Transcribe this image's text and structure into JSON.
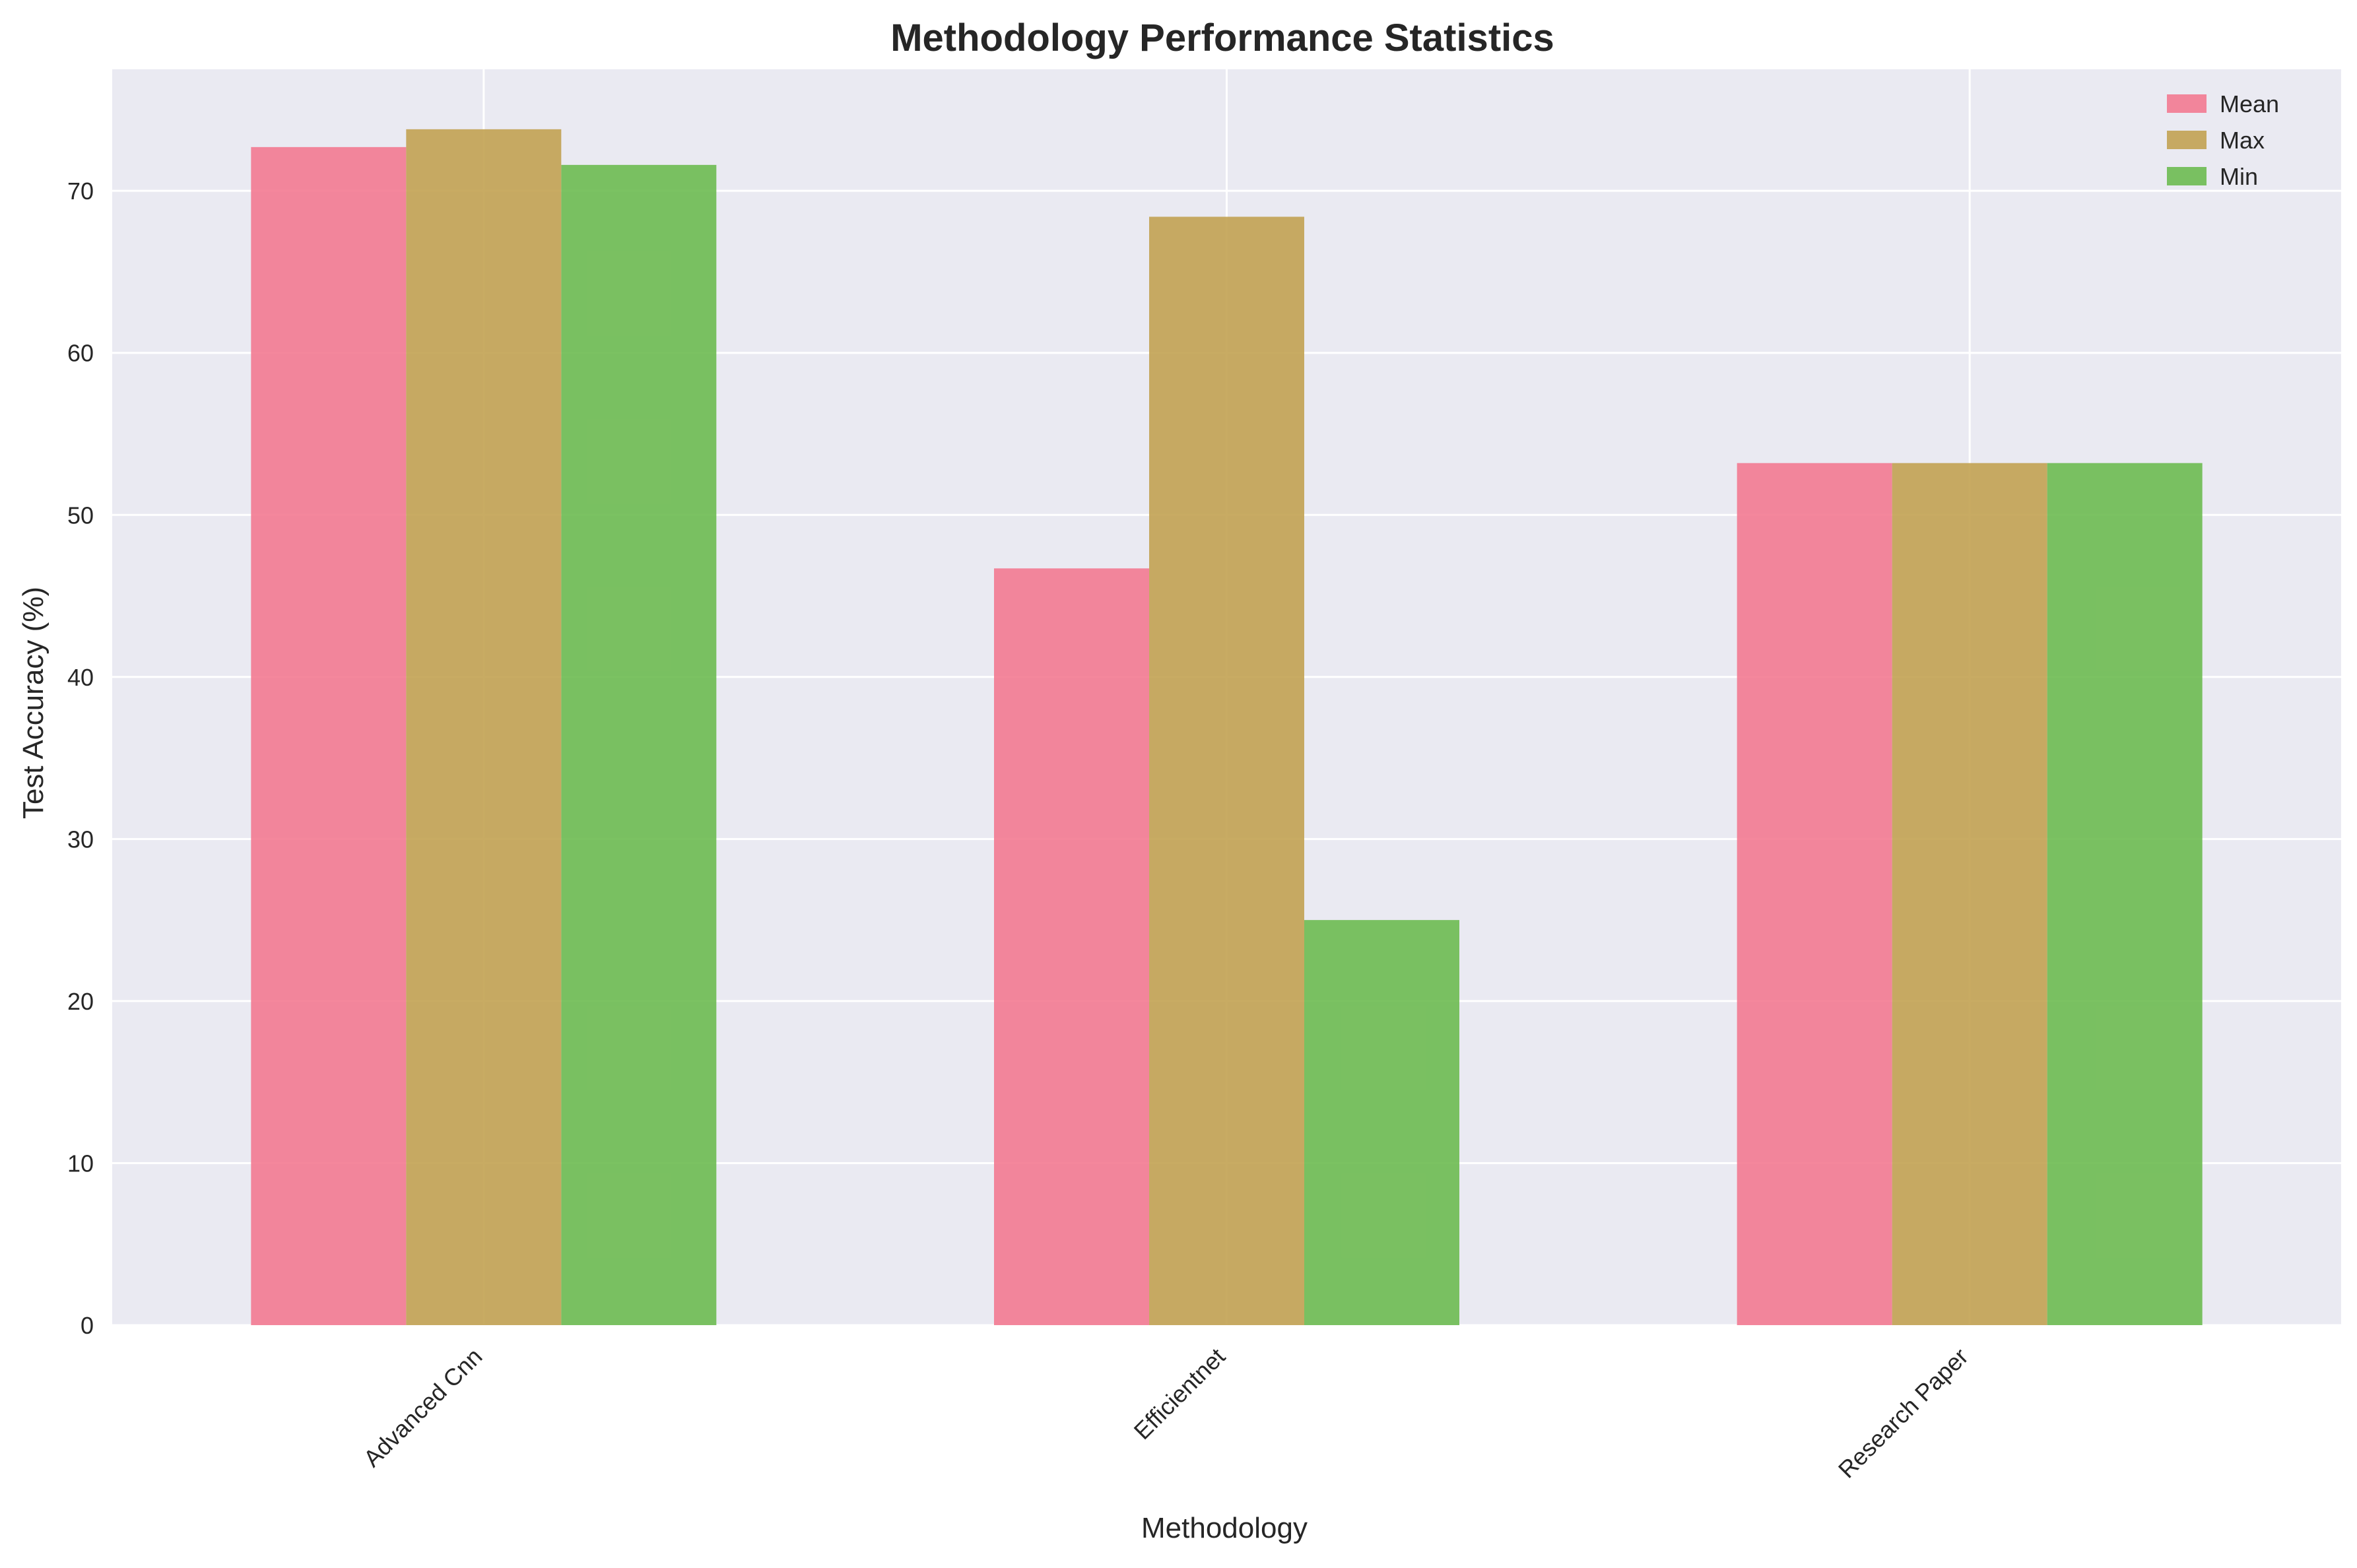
{
  "chart_data": {
    "type": "bar",
    "title": "Methodology Performance Statistics",
    "xlabel": "Methodology",
    "ylabel": "Test Accuracy (%)",
    "categories": [
      "Advanced Cnn",
      "Efficientnet",
      "Research Paper"
    ],
    "series": [
      {
        "name": "Mean",
        "values": [
          72.7,
          46.7,
          53.2
        ],
        "color": "#F37A91"
      },
      {
        "name": "Max",
        "values": [
          73.8,
          68.4,
          53.2
        ],
        "color": "#C2A252"
      },
      {
        "name": "Min",
        "values": [
          71.6,
          25.0,
          53.2
        ],
        "color": "#6DBB51"
      }
    ],
    "ylim": [
      0,
      77.5
    ],
    "yticks": [
      0,
      10,
      20,
      30,
      40,
      50,
      60,
      70
    ],
    "grid": true,
    "legend": "top-right",
    "background_color": "#EAEAF2",
    "grid_color": "#FFFFFF"
  }
}
